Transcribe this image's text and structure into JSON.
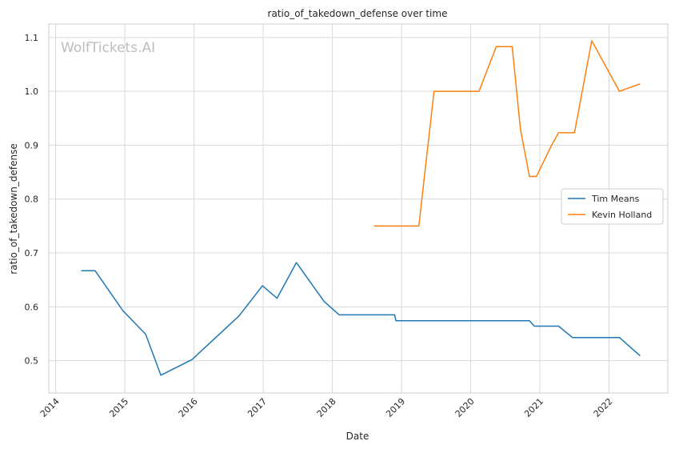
{
  "chart_data": {
    "type": "line",
    "title": "ratio_of_takedown_defense over time",
    "xlabel": "Date",
    "ylabel": "ratio_of_takedown_defense",
    "watermark": "WolfTickets.AI",
    "xlim": [
      2013.9,
      2022.85
    ],
    "ylim": [
      0.44,
      1.125
    ],
    "grid": true,
    "legend_position": "center-right",
    "x_ticks": [
      "2014",
      "2015",
      "2016",
      "2017",
      "2018",
      "2019",
      "2020",
      "2021",
      "2022"
    ],
    "y_ticks": [
      "0.5",
      "0.6",
      "0.7",
      "0.8",
      "0.9",
      "1.0",
      "1.1"
    ],
    "series": [
      {
        "name": "Tim Means",
        "color": "#1f77b4",
        "points": [
          [
            2014.37,
            0.667
          ],
          [
            2014.57,
            0.667
          ],
          [
            2014.97,
            0.593
          ],
          [
            2015.3,
            0.549
          ],
          [
            2015.52,
            0.473
          ],
          [
            2015.97,
            0.502
          ],
          [
            2016.65,
            0.583
          ],
          [
            2016.99,
            0.639
          ],
          [
            2017.2,
            0.616
          ],
          [
            2017.48,
            0.682
          ],
          [
            2017.88,
            0.61
          ],
          [
            2018.1,
            0.585
          ],
          [
            2018.55,
            0.585
          ],
          [
            2018.9,
            0.585
          ],
          [
            2018.92,
            0.574
          ],
          [
            2019.5,
            0.574
          ],
          [
            2020.3,
            0.574
          ],
          [
            2020.85,
            0.574
          ],
          [
            2020.92,
            0.564
          ],
          [
            2021.27,
            0.564
          ],
          [
            2021.47,
            0.543
          ],
          [
            2022.15,
            0.543
          ],
          [
            2022.45,
            0.509
          ]
        ]
      },
      {
        "name": "Kevin Holland",
        "color": "#ff7f0e",
        "points": [
          [
            2018.6,
            0.75
          ],
          [
            2019.25,
            0.75
          ],
          [
            2019.47,
            1.0
          ],
          [
            2020.12,
            1.0
          ],
          [
            2020.37,
            1.083
          ],
          [
            2020.6,
            1.083
          ],
          [
            2020.72,
            0.929
          ],
          [
            2020.85,
            0.842
          ],
          [
            2020.95,
            0.842
          ],
          [
            2021.17,
            0.9
          ],
          [
            2021.27,
            0.923
          ],
          [
            2021.5,
            0.923
          ],
          [
            2021.75,
            1.094
          ],
          [
            2022.15,
            1.0
          ],
          [
            2022.45,
            1.014
          ]
        ]
      }
    ]
  }
}
